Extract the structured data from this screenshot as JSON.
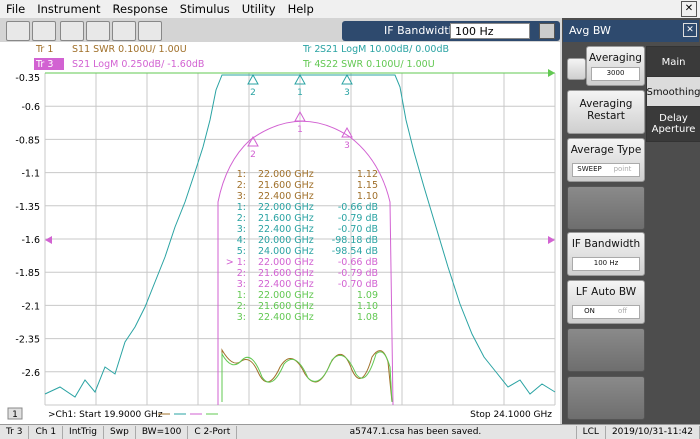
{
  "menu": [
    "File",
    "Instrument",
    "Response",
    "Stimulus",
    "Utility",
    "Help"
  ],
  "toolbar": {
    "field_label": "IF Bandwidth",
    "field_value": "100 Hz"
  },
  "chart": {
    "traces": [
      {
        "id": "Tr 1",
        "desc": "S11 SWR 0.100U/ 1.00U",
        "color": "#a0702a"
      },
      {
        "id": "Tr 2",
        "desc": "S21 LogM 10.00dB/ 0.00dB",
        "color": "#2aa3a3"
      },
      {
        "id": "Tr 3",
        "desc": "S21 LogM 0.250dB/ -1.60dB",
        "color": "#d262d2"
      },
      {
        "id": "Tr 4",
        "desc": "S22 SWR 0.100U/ 1.00U",
        "color": "#62c852"
      }
    ],
    "ylim": [
      -2.85,
      -0.35
    ],
    "yticks": [
      -0.35,
      -0.6,
      -0.85,
      -1.1,
      -1.35,
      -1.6,
      -1.85,
      -2.1,
      -2.35,
      -2.6
    ],
    "marker_table": [
      {
        "trace": 0,
        "num": "1:",
        "freq": "22.000 GHz",
        "value": "1.12"
      },
      {
        "trace": 0,
        "num": "2:",
        "freq": "21.600 GHz",
        "value": "1.15"
      },
      {
        "trace": 0,
        "num": "3:",
        "freq": "22.400 GHz",
        "value": "1.10"
      },
      {
        "trace": 1,
        "num": "1:",
        "freq": "22.000 GHz",
        "value": "-0.66 dB"
      },
      {
        "trace": 1,
        "num": "2:",
        "freq": "21.600 GHz",
        "value": "-0.79 dB"
      },
      {
        "trace": 1,
        "num": "3:",
        "freq": "22.400 GHz",
        "value": "-0.70 dB"
      },
      {
        "trace": 1,
        "num": "4:",
        "freq": "20.000 GHz",
        "value": "-98.18 dB"
      },
      {
        "trace": 1,
        "num": "5:",
        "freq": "24.000 GHz",
        "value": "-98.54 dB"
      },
      {
        "trace": 2,
        "num": "> 1:",
        "freq": "22.000 GHz",
        "value": "-0.66 dB"
      },
      {
        "trace": 2,
        "num": "2:",
        "freq": "21.600 GHz",
        "value": "-0.79 dB"
      },
      {
        "trace": 2,
        "num": "3:",
        "freq": "22.400 GHz",
        "value": "-0.70 dB"
      },
      {
        "trace": 3,
        "num": "1:",
        "freq": "22.000 GHz",
        "value": "1.09"
      },
      {
        "trace": 3,
        "num": "2:",
        "freq": "21.600 GHz",
        "value": "1.10"
      },
      {
        "trace": 3,
        "num": "3:",
        "freq": "22.400 GHz",
        "value": "1.08"
      }
    ],
    "marker_labels": [
      "2",
      "1",
      "3"
    ],
    "channel_label": "1",
    "start": ">Ch1: Start 19.9000 GHz",
    "stop": "Stop 24.1000 GHz"
  },
  "panel": {
    "title": "Avg BW",
    "averaging": "Averaging",
    "averaging_value": "3000",
    "restart": "Averaging Restart",
    "average_type": "Average Type",
    "average_type_on": "SWEEP",
    "average_type_off": "point",
    "if_bandwidth": "IF Bandwidth",
    "if_bandwidth_value": "100 Hz",
    "lf_auto": "LF Auto BW",
    "lf_auto_on": "ON",
    "lf_auto_off": "off",
    "tabs": [
      "Main",
      "Smoothing",
      "Delay Aperture"
    ]
  },
  "status": [
    "Tr 3",
    "Ch 1",
    "IntTrig",
    "Swp",
    "BW=100",
    "C 2-Port",
    "a5747.1.csa has been saved.",
    "LCL",
    "2019/10/31-11:42"
  ]
}
